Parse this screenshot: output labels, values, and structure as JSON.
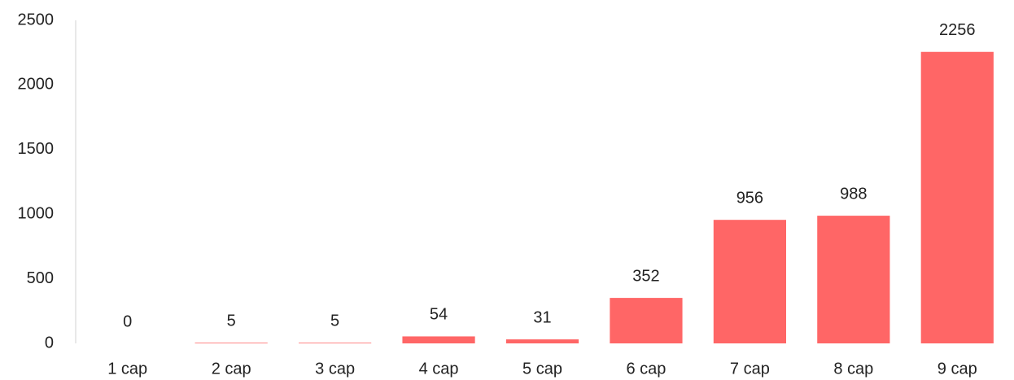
{
  "chart_data": {
    "type": "bar",
    "categories": [
      "1 cap",
      "2 cap",
      "3 cap",
      "4 cap",
      "5 cap",
      "6 cap",
      "7 cap",
      "8 cap",
      "9 cap"
    ],
    "values": [
      0,
      5,
      5,
      54,
      31,
      352,
      956,
      988,
      2256
    ],
    "color": "#ff6666",
    "ylim": [
      0,
      2500
    ],
    "yticks": [
      0,
      500,
      1000,
      1500,
      2000,
      2500
    ],
    "grid": false
  }
}
